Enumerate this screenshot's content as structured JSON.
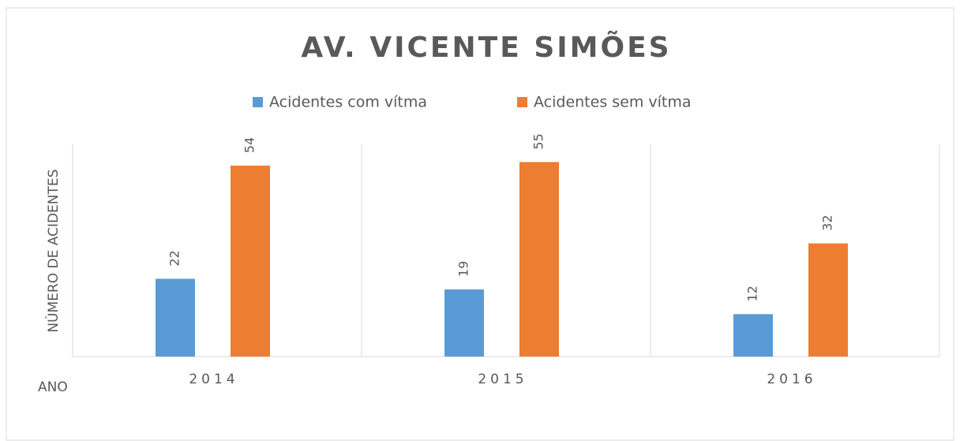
{
  "chart_data": {
    "type": "bar",
    "title": "AV. VICENTE SIMÕES",
    "categories": [
      "2014",
      "2015",
      "2016"
    ],
    "series": [
      {
        "name": "Acidentes com vítma",
        "color": "#5b9bd5",
        "values": [
          22,
          19,
          12
        ]
      },
      {
        "name": "Acidentes sem vítma",
        "color": "#ed7d31",
        "values": [
          54,
          55,
          32
        ]
      }
    ],
    "ylim": [
      0,
      60
    ],
    "y_label": "NÚMERO DE ACIDENTES",
    "x_label": "ANO",
    "legend": "top"
  }
}
